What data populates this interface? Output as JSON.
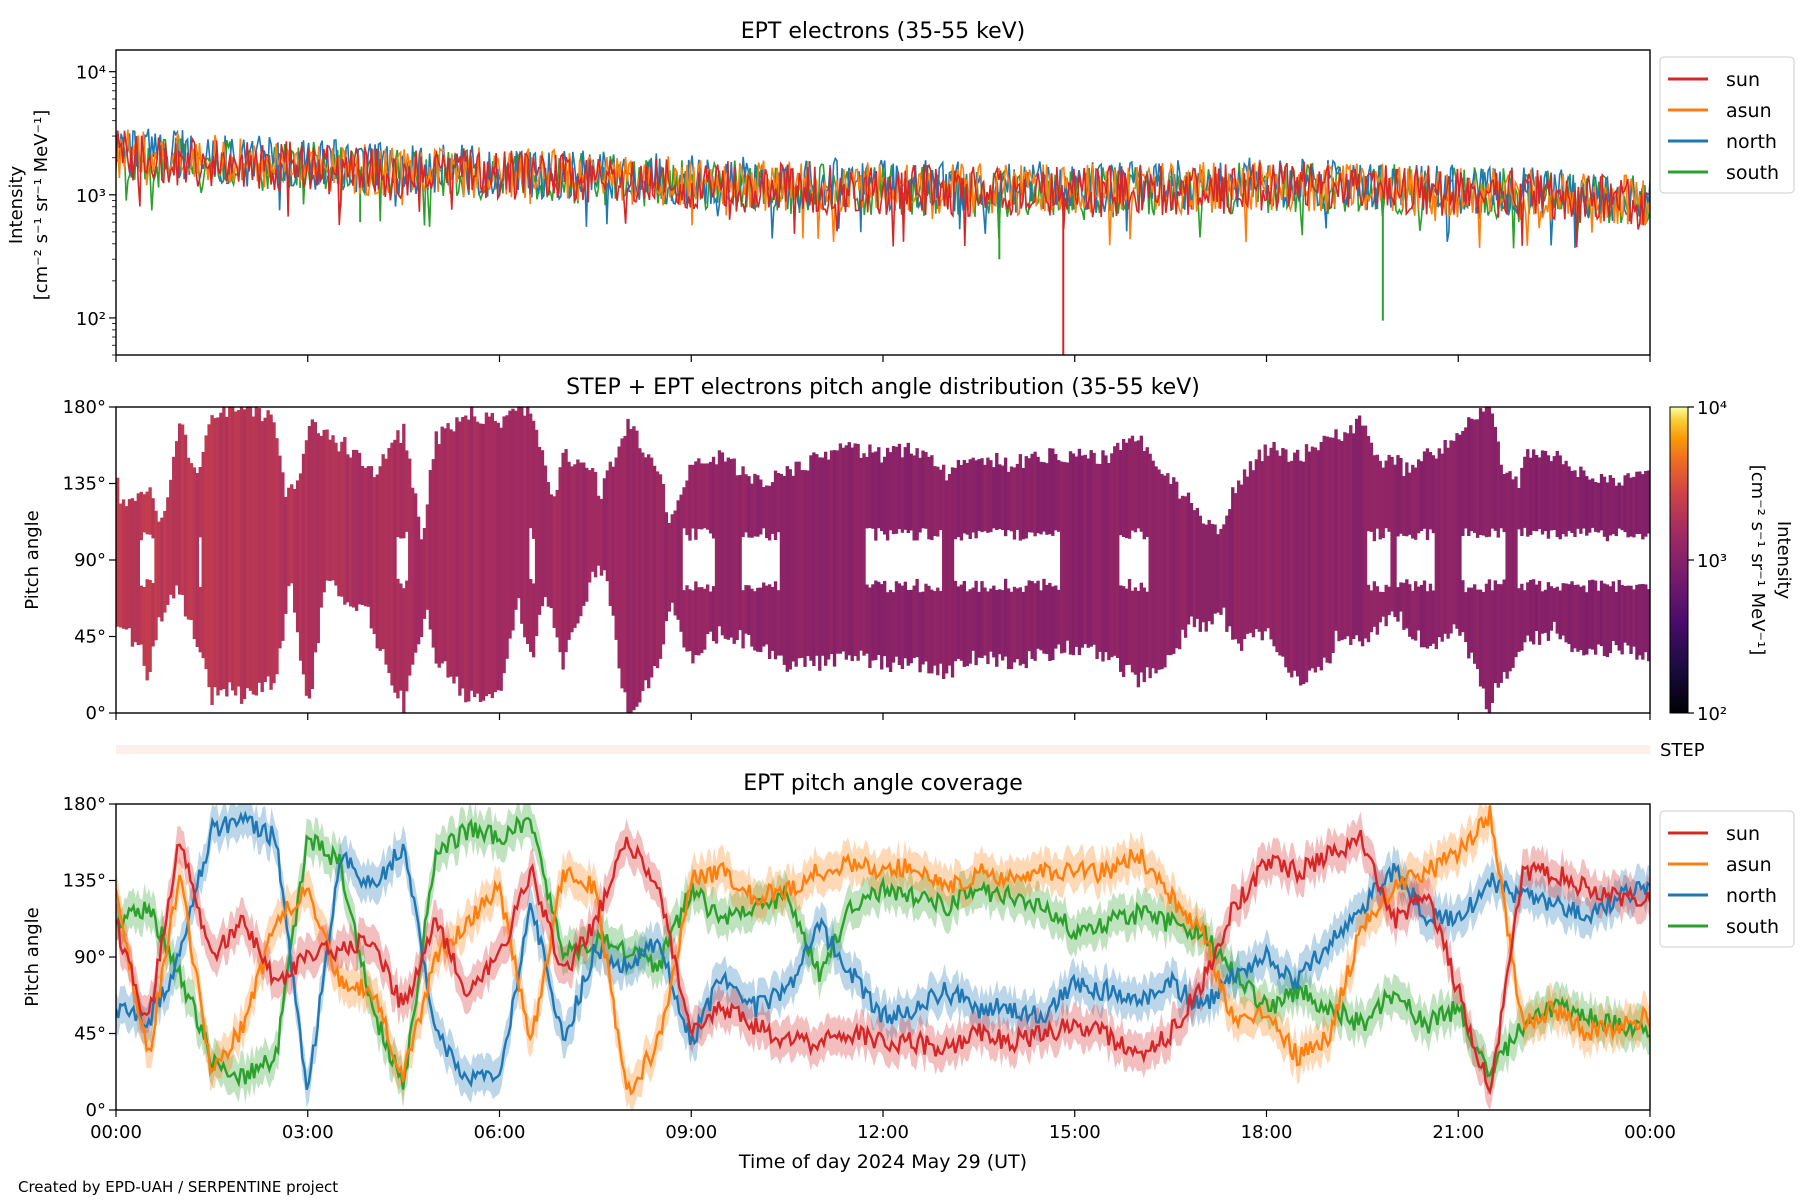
{
  "footer": {
    "credit": "Created by EPD-UAH / SERPENTINE project"
  },
  "colors": {
    "sun": "#d62728",
    "asun": "#ff7f0e",
    "north": "#1f77b4",
    "south": "#2ca02c",
    "step_band": "#fdf0ea"
  },
  "chart_data": [
    {
      "type": "line",
      "title": "EPT electrons (35-55 keV)",
      "xlabel": "",
      "ylabel_line1": "Intensity",
      "ylabel_line2": "[cm⁻² s⁻¹ sr⁻¹ MeV⁻¹]",
      "yscale": "log",
      "ylim": [
        50,
        15000
      ],
      "yticks": [
        100,
        1000,
        10000
      ],
      "ytick_labels": [
        "10²",
        "10³",
        "10⁴"
      ],
      "xlim_hours": [
        0,
        24
      ],
      "legend_position": "outside-right",
      "series": [
        {
          "name": "sun",
          "color_key": "sun",
          "x_hours": [
            0,
            1,
            2,
            3,
            4,
            5,
            6,
            7,
            8,
            9,
            10,
            11,
            12,
            13,
            14,
            14.8,
            14.82,
            14.84,
            15,
            16,
            17,
            18,
            19,
            20,
            21,
            22,
            23,
            24
          ],
          "values": [
            2100,
            1900,
            1750,
            1650,
            1550,
            1500,
            1450,
            1400,
            1300,
            1200,
            1150,
            1100,
            1100,
            1100,
            1050,
            1050,
            50,
            1050,
            1050,
            1100,
            1100,
            1200,
            1150,
            1100,
            1050,
            1000,
            950,
            900
          ]
        },
        {
          "name": "asun",
          "color_key": "asun",
          "x_hours": [
            0,
            2,
            4,
            6,
            8,
            10,
            12,
            14,
            16,
            18,
            20,
            22,
            24
          ],
          "values": [
            2200,
            1800,
            1600,
            1500,
            1350,
            1200,
            1150,
            1100,
            1100,
            1200,
            1100,
            1000,
            900
          ]
        },
        {
          "name": "north",
          "color_key": "north",
          "x_hours": [
            0,
            2,
            4,
            6,
            8,
            10,
            12,
            14,
            16,
            18,
            20,
            22,
            24
          ],
          "values": [
            2300,
            1900,
            1650,
            1550,
            1400,
            1250,
            1200,
            1150,
            1150,
            1250,
            1150,
            1050,
            950
          ]
        },
        {
          "name": "south",
          "color_key": "south",
          "x_hours": [
            0,
            2,
            3.8,
            3.82,
            3.84,
            6,
            8,
            10,
            12,
            13.8,
            13.82,
            13.84,
            16,
            18,
            19.8,
            19.82,
            19.84,
            22,
            24
          ],
          "values": [
            2000,
            1750,
            1600,
            600,
            1600,
            1450,
            1300,
            1150,
            1100,
            1050,
            300,
            1050,
            1100,
            1150,
            1100,
            95,
            1100,
            1000,
            900
          ]
        }
      ]
    },
    {
      "type": "heatmap",
      "title": "STEP + EPT electrons pitch angle distribution (35-55 keV)",
      "xlabel": "",
      "ylabel": "Pitch angle",
      "ylim": [
        0,
        180
      ],
      "yticks": [
        0,
        45,
        90,
        135,
        180
      ],
      "ytick_labels": [
        "0°",
        "45°",
        "90°",
        "135°",
        "180°"
      ],
      "xlim_hours": [
        0,
        24
      ],
      "colorbar": {
        "label_line1": "Intensity",
        "label_line2": "[cm⁻² s⁻¹ sr⁻¹ MeV⁻¹]",
        "scale": "log",
        "range": [
          100,
          10000
        ],
        "ticks": [
          100,
          1000,
          10000
        ],
        "tick_labels": [
          "10²",
          "10³",
          "10⁴"
        ],
        "colormap": "inferno"
      },
      "step_label": "STEP",
      "intensity_by_time": {
        "x_hours": [
          0,
          2.5,
          5,
          7,
          8.5,
          10,
          12,
          15,
          18,
          21,
          24
        ],
        "values": [
          2200,
          1900,
          1600,
          1450,
          1300,
          1150,
          1050,
          1050,
          1150,
          1050,
          950
        ]
      }
    },
    {
      "type": "line",
      "title": "EPT pitch angle coverage",
      "xlabel": "Time of day 2024 May 29 (UT)",
      "ylabel": "Pitch angle",
      "ylim": [
        0,
        180
      ],
      "yticks": [
        0,
        45,
        90,
        135,
        180
      ],
      "ytick_labels": [
        "0°",
        "45°",
        "90°",
        "135°",
        "180°"
      ],
      "xlim_hours": [
        0,
        24
      ],
      "xticks_hours": [
        0,
        3,
        6,
        9,
        12,
        15,
        18,
        21,
        24
      ],
      "xtick_labels": [
        "00:00",
        "03:00",
        "06:00",
        "09:00",
        "12:00",
        "15:00",
        "18:00",
        "21:00",
        "00:00"
      ],
      "legend_position": "outside-right",
      "shaded_band_halfwidth_deg": 11,
      "series": [
        {
          "name": "sun",
          "color_key": "sun",
          "x_hours": [
            0,
            0.5,
            1,
            1.5,
            2,
            2.5,
            3,
            3.5,
            4,
            4.5,
            5,
            5.5,
            6,
            6.5,
            7,
            7.5,
            8,
            8.5,
            9,
            9.5,
            10,
            10.5,
            11,
            11.5,
            12,
            12.5,
            13,
            13.5,
            14,
            14.5,
            15,
            15.5,
            16,
            16.5,
            17,
            17.5,
            18,
            18.5,
            19,
            19.5,
            20,
            20.5,
            21,
            21.5,
            22,
            22.5,
            23,
            23.5,
            24
          ],
          "values": [
            110,
            50,
            160,
            90,
            110,
            75,
            90,
            95,
            100,
            60,
            110,
            70,
            90,
            140,
            80,
            110,
            160,
            130,
            45,
            60,
            50,
            40,
            40,
            45,
            40,
            40,
            35,
            45,
            40,
            45,
            50,
            45,
            30,
            45,
            75,
            120,
            145,
            140,
            150,
            160,
            110,
            130,
            70,
            10,
            140,
            140,
            130,
            125,
            125
          ]
        },
        {
          "name": "asun",
          "color_key": "asun",
          "x_hours": [
            0,
            0.5,
            1,
            1.5,
            2,
            2.5,
            3,
            3.5,
            4,
            4.5,
            5,
            5.5,
            6,
            6.5,
            7,
            7.5,
            8,
            8.5,
            9,
            9.5,
            10,
            10.5,
            11,
            11.5,
            12,
            12.5,
            13,
            13.5,
            14,
            14.5,
            15,
            15.5,
            16,
            16.5,
            17,
            17.5,
            18,
            18.5,
            19,
            19.5,
            20,
            20.5,
            21,
            21.5,
            22,
            22.5,
            23,
            23.5,
            24
          ],
          "values": [
            130,
            30,
            140,
            20,
            50,
            110,
            130,
            75,
            70,
            20,
            90,
            110,
            130,
            40,
            140,
            130,
            10,
            40,
            135,
            140,
            125,
            130,
            140,
            145,
            140,
            145,
            130,
            140,
            135,
            140,
            140,
            140,
            150,
            125,
            105,
            50,
            60,
            30,
            45,
            110,
            130,
            140,
            150,
            175,
            50,
            60,
            45,
            50,
            55
          ]
        },
        {
          "name": "north",
          "color_key": "north",
          "x_hours": [
            0,
            0.5,
            1,
            1.5,
            2,
            2.5,
            3,
            3.5,
            4,
            4.5,
            5,
            5.5,
            6,
            6.5,
            7,
            7.5,
            8,
            8.5,
            9,
            9.5,
            10,
            10.5,
            11,
            11.5,
            12,
            12.5,
            13,
            13.5,
            14,
            14.5,
            15,
            15.5,
            16,
            16.5,
            17,
            17.5,
            18,
            18.5,
            19,
            19.5,
            20,
            20.5,
            21,
            21.5,
            22,
            22.5,
            23,
            23.5,
            24
          ],
          "values": [
            60,
            50,
            90,
            165,
            170,
            160,
            10,
            150,
            130,
            155,
            45,
            20,
            20,
            120,
            40,
            95,
            85,
            100,
            40,
            80,
            60,
            70,
            110,
            80,
            55,
            60,
            70,
            60,
            60,
            55,
            75,
            70,
            65,
            75,
            60,
            80,
            90,
            75,
            100,
            120,
            140,
            115,
            110,
            135,
            125,
            120,
            115,
            125,
            130
          ]
        },
        {
          "name": "south",
          "color_key": "south",
          "x_hours": [
            0,
            0.5,
            1,
            1.5,
            2,
            2.5,
            3,
            3.5,
            4,
            4.5,
            5,
            5.5,
            6,
            6.5,
            7,
            7.5,
            8,
            8.5,
            9,
            9.5,
            10,
            10.5,
            11,
            11.5,
            12,
            12.5,
            13,
            13.5,
            14,
            14.5,
            15,
            15.5,
            16,
            16.5,
            17,
            17.5,
            18,
            18.5,
            19,
            19.5,
            20,
            20.5,
            21,
            21.5,
            22,
            22.5,
            23,
            23.5,
            24
          ],
          "values": [
            110,
            120,
            80,
            30,
            20,
            30,
            160,
            145,
            60,
            15,
            150,
            165,
            160,
            170,
            90,
            100,
            95,
            85,
            130,
            110,
            120,
            125,
            80,
            120,
            130,
            125,
            120,
            130,
            125,
            120,
            105,
            110,
            115,
            110,
            105,
            80,
            60,
            70,
            60,
            50,
            70,
            50,
            60,
            20,
            50,
            60,
            55,
            50,
            45
          ]
        }
      ]
    }
  ]
}
